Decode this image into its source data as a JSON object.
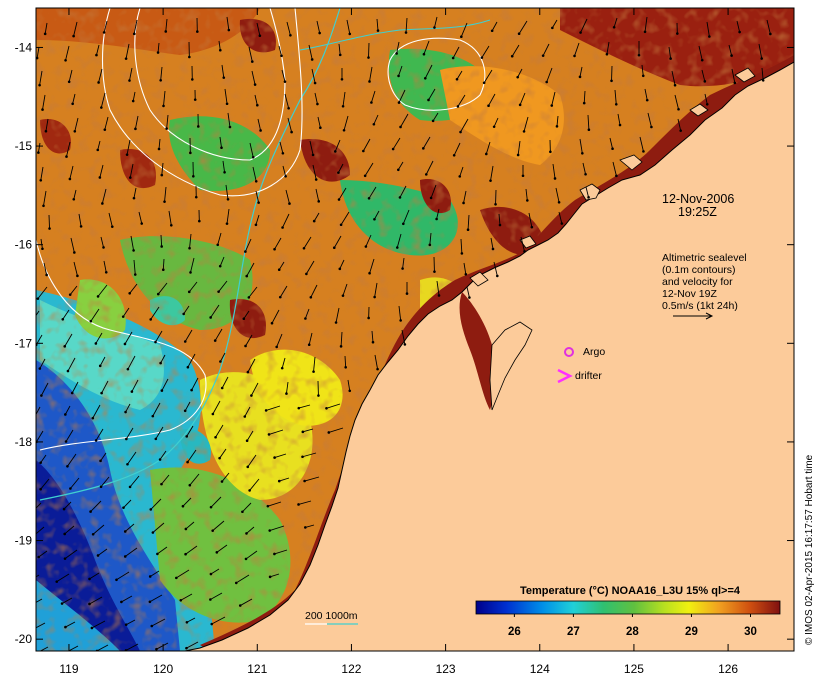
{
  "map": {
    "lon_ticks": [
      "119",
      "120",
      "121",
      "122",
      "123",
      "124",
      "125",
      "126"
    ],
    "lat_ticks": [
      "-14",
      "-15",
      "-16",
      "-17",
      "-18",
      "-19",
      "-20"
    ],
    "lon_range": [
      118.65,
      126.7
    ],
    "lat_range": [
      -13.6,
      -20.12
    ]
  },
  "annotations": {
    "date": "12-Nov-2006",
    "time": "19:25Z",
    "altimetry_lines": [
      "Altimetric sealevel",
      "(0.1m contours)",
      "and velocity for",
      "12-Nov 19Z",
      "0.5m/s (1kt 24h)"
    ],
    "argo_label": "Argo",
    "drifter_label": "drifter",
    "bathymetry_label": "200  1000m"
  },
  "colorbar": {
    "title": "Temperature (°C) NOAA16_L3U 15% ql>=4",
    "ticks": [
      "26",
      "27",
      "28",
      "29",
      "30"
    ],
    "range": [
      25.35,
      30.5
    ]
  },
  "credit": "© IMOS 02-Apr-2015 16:17:57 Hobart time",
  "colors": {
    "land": "#fccb9a",
    "warm": "#d87a18",
    "hot": "#8e1c10",
    "cool": "#2ecad8",
    "contour": "#ffffff",
    "isobath": "#40d0d0",
    "argo": "#e030e0",
    "drifter": "#ff30ff"
  }
}
